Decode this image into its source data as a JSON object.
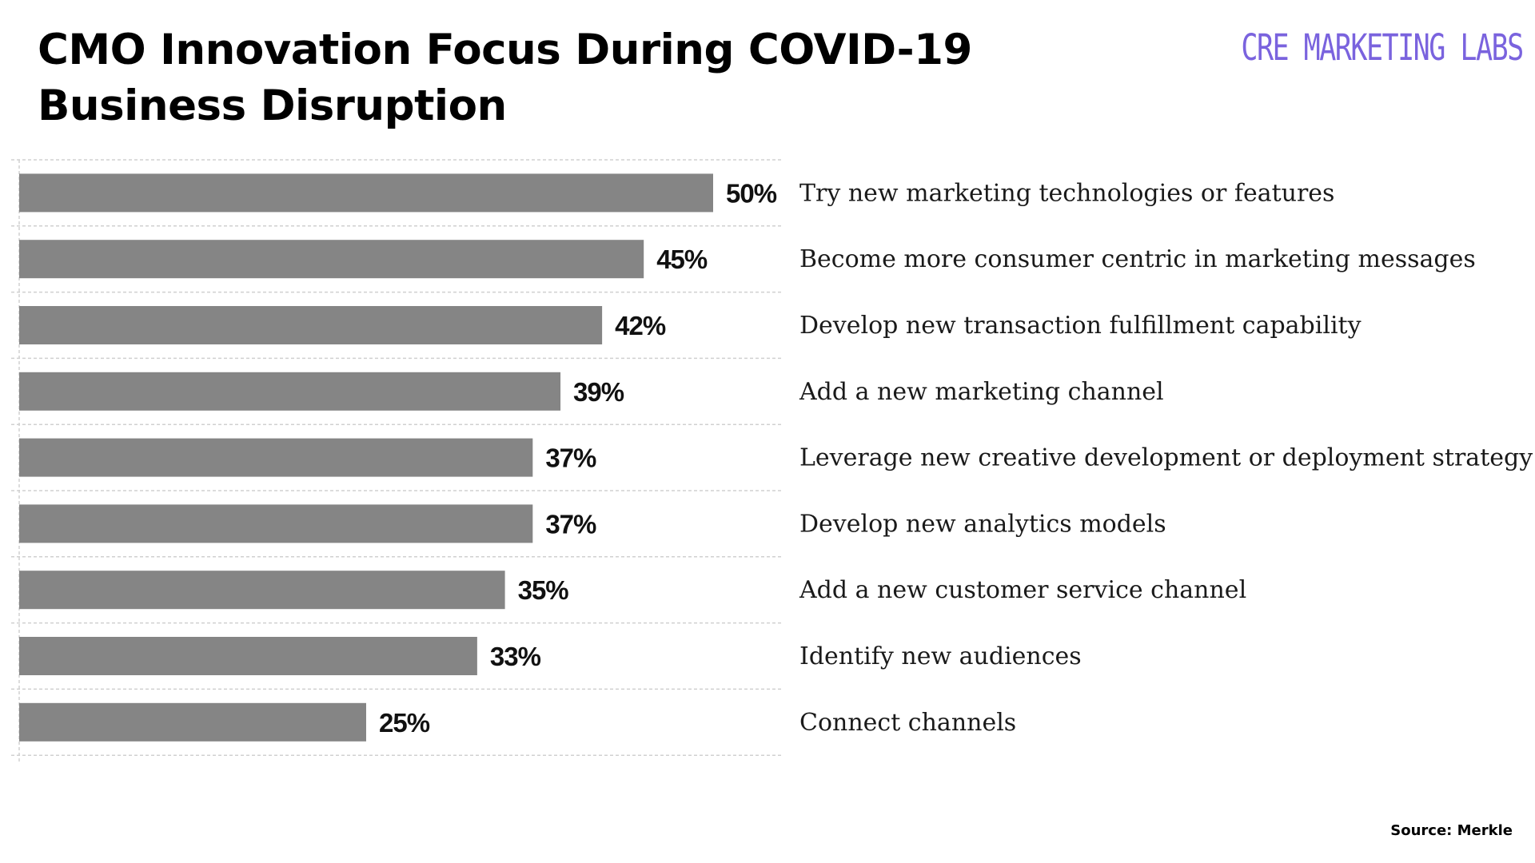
{
  "header": {
    "title_line1": "CMO Innovation Focus During COVID-19",
    "title_line2": "Business Disruption",
    "brand": "CRE MARKETING LABS"
  },
  "footer": {
    "source": "Source: Merkle"
  },
  "colors": {
    "bar": "#858585",
    "gridline": "#d0d0d0",
    "brand": "#7a63de"
  },
  "chart_data": {
    "type": "bar",
    "orientation": "horizontal",
    "title": "CMO Innovation Focus During COVID-19 Business Disruption",
    "categories": [
      "Try new marketing technologies or features",
      "Become more consumer centric in marketing messages",
      "Develop new transaction fulfillment capability",
      "Add a new marketing channel",
      "Leverage new creative development or deployment strategy",
      "Develop new analytics models",
      "Add a new customer service channel",
      "Identify new audiences",
      "Connect channels"
    ],
    "values": [
      50,
      45,
      42,
      39,
      37,
      37,
      35,
      33,
      25
    ],
    "value_labels": [
      "50%",
      "45%",
      "42%",
      "39%",
      "37%",
      "37%",
      "35%",
      "33%",
      "25%"
    ],
    "xlabel": "",
    "ylabel": "",
    "xlim": [
      0,
      55
    ],
    "grid": true,
    "legend": "none"
  }
}
